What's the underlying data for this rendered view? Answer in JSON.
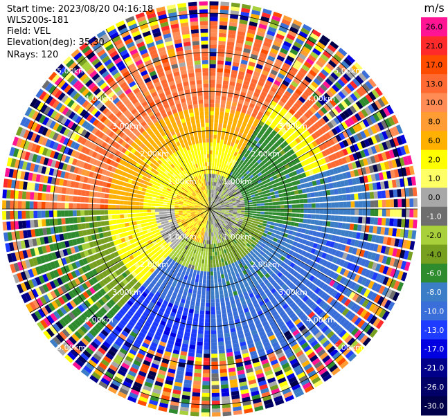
{
  "header": {
    "start_time": "Start time: 2023/08/20 04:16:18",
    "instrument": "WLS200s-181",
    "field": "Field: VEL",
    "elevation": "Elevation(deg): 35.30",
    "nrays": "NRays: 120"
  },
  "chart_data": {
    "type": "heatmap",
    "projection": "polar PPI",
    "unit": "m/s",
    "range_rings_km": [
      1,
      2,
      3,
      4,
      5
    ],
    "range_ring_labels": [
      "1.00km",
      "2.00km",
      "3.00km",
      "4.00km",
      "5.00km"
    ],
    "max_range_km": 5.3,
    "nrays": 120,
    "colorbar_ticks": [
      "26.0",
      "21.0",
      "17.0",
      "13.0",
      "10.0",
      "8.0",
      "6.0",
      "2.0",
      "1.0",
      "0.0",
      "-1.0",
      "-2.0",
      "-4.0",
      "-6.0",
      "-8.0",
      "-10.0",
      "-13.0",
      "-17.0",
      "-21.0",
      "-26.0",
      "-30.0"
    ],
    "colorbar_colors": [
      "#ff1493",
      "#ff2a2a",
      "#ff4d00",
      "#ff6a33",
      "#ff8c55",
      "#ff9c33",
      "#ffb000",
      "#ffff00",
      "#ffff66",
      "#a8a8a8",
      "#6e6e6e",
      "#a8d03a",
      "#78a020",
      "#2e8b2e",
      "#3c7dc8",
      "#3a6ed8",
      "#1e3cff",
      "#0000e0",
      "#00008b",
      "#000066",
      "#00004a"
    ],
    "colors": {
      "ring": "#000000",
      "label": "#ffffff"
    }
  }
}
